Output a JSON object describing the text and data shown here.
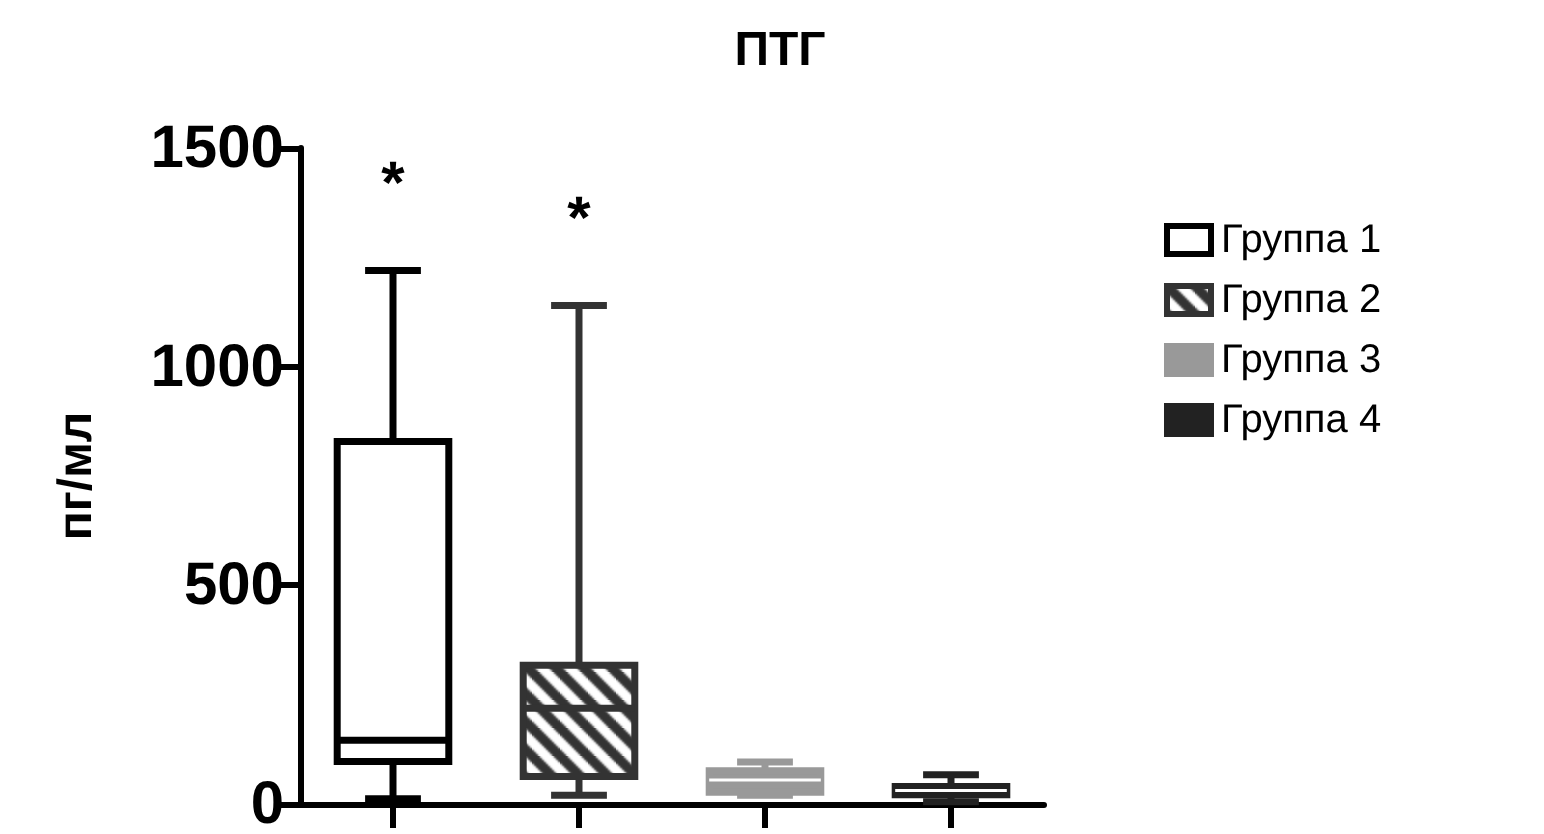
{
  "chart_data": {
    "type": "box",
    "title": "ПТГ",
    "ylabel": "пг/мл",
    "categories": [
      null,
      null,
      null,
      null
    ],
    "series": [
      {
        "name": "Группа 1",
        "color": "#000000",
        "boxes": [
          {
            "low": 12,
            "q1": 97,
            "median": 146,
            "q3": 829,
            "high": 1220
          },
          null,
          null,
          null
        ]
      },
      {
        "name": "Группа 2",
        "color": "#333333",
        "boxes": [
          null,
          {
            "low": 20,
            "q1": 63,
            "median": 219,
            "q3": 317,
            "high": 1140
          },
          null,
          null
        ]
      },
      {
        "name": "Группа 3",
        "color": "#999999",
        "boxes": [
          null,
          null,
          {
            "low": 20,
            "q1": 27,
            "median": 55,
            "q3": 76,
            "high": 96
          },
          null
        ]
      },
      {
        "name": "Группа 4",
        "color": "#222222",
        "boxes": [
          null,
          null,
          null,
          {
            "low": 5,
            "q1": 21,
            "median": 31,
            "q3": 40,
            "high": 67
          }
        ]
      }
    ],
    "annotations": [
      "*",
      "*"
    ],
    "ylim": [
      0,
      1500
    ],
    "yticks": [
      0,
      500,
      1000,
      1500
    ],
    "tick_labels": "y",
    "grid": false,
    "legend": "right"
  }
}
